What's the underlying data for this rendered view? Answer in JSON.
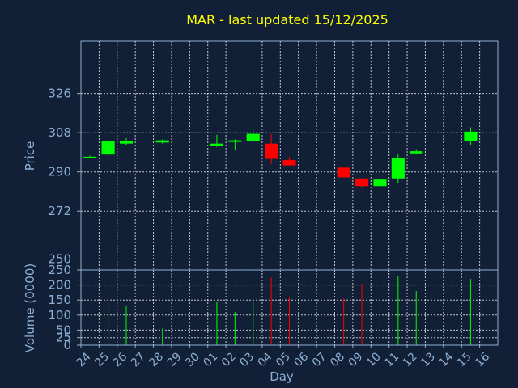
{
  "chart_data": {
    "title": "MAR - last updated 15/12/2025",
    "colors": {
      "background": "#112036",
      "up": "#00ff00",
      "down": "#ff0000",
      "title": "#ffff00",
      "axis_text": "#8eb0d6",
      "grid": "#ffffff"
    },
    "price_panel": {
      "type": "candlestick",
      "ylabel": "Price",
      "ylim": [
        245,
        350
      ],
      "yticks": [
        250,
        272,
        290,
        308,
        326
      ],
      "grid": true
    },
    "volume_panel": {
      "type": "bar",
      "ylabel": "Volume (0000)",
      "ylim": [
        0,
        250
      ],
      "yticks": [
        0,
        25,
        50,
        100,
        150,
        200,
        250
      ],
      "grid": true
    },
    "xlabel": "Day",
    "x_tick_labels": [
      "24",
      "25",
      "26",
      "27",
      "28",
      "29",
      "30",
      "01",
      "02",
      "03",
      "04",
      "05",
      "06",
      "07",
      "08",
      "09",
      "10",
      "11",
      "12",
      "13",
      "14",
      "15",
      "16"
    ],
    "candles": [
      {
        "day": "24",
        "open": 297,
        "high": 297.5,
        "low": 296.5,
        "close": 297,
        "volume": 0
      },
      {
        "day": "25",
        "open": 298,
        "high": 304.5,
        "low": 297,
        "close": 304,
        "volume": 140
      },
      {
        "day": "26",
        "open": 303,
        "high": 305.5,
        "low": 302.5,
        "close": 304,
        "volume": 130
      },
      {
        "day": "28",
        "open": 303.5,
        "high": 305,
        "low": 303,
        "close": 304.5,
        "volume": 55
      },
      {
        "day": "01",
        "open": 302,
        "high": 307,
        "low": 301.5,
        "close": 303,
        "volume": 145
      },
      {
        "day": "02",
        "open": 304,
        "high": 305,
        "low": 300,
        "close": 304.5,
        "volume": 110
      },
      {
        "day": "03",
        "open": 304,
        "high": 309.5,
        "low": 303.5,
        "close": 307.5,
        "volume": 150
      },
      {
        "day": "04",
        "open": 303,
        "high": 307.5,
        "low": 293.5,
        "close": 296,
        "volume": 225
      },
      {
        "day": "05",
        "open": 295.5,
        "high": 297,
        "low": 293,
        "close": 293,
        "volume": 160
      },
      {
        "day": "08",
        "open": 292,
        "high": 292,
        "low": 287.5,
        "close": 287.5,
        "volume": 155
      },
      {
        "day": "09",
        "open": 287,
        "high": 287,
        "low": 283,
        "close": 283.5,
        "volume": 205
      },
      {
        "day": "10",
        "open": 283.5,
        "high": 287,
        "low": 283,
        "close": 286.5,
        "volume": 175
      },
      {
        "day": "11",
        "open": 287,
        "high": 298,
        "low": 285,
        "close": 296.5,
        "volume": 230
      },
      {
        "day": "12",
        "open": 298.5,
        "high": 300.5,
        "low": 298,
        "close": 299.5,
        "volume": 180
      },
      {
        "day": "15",
        "open": 304,
        "high": 310.5,
        "low": 302.5,
        "close": 308.5,
        "volume": 220
      }
    ]
  }
}
